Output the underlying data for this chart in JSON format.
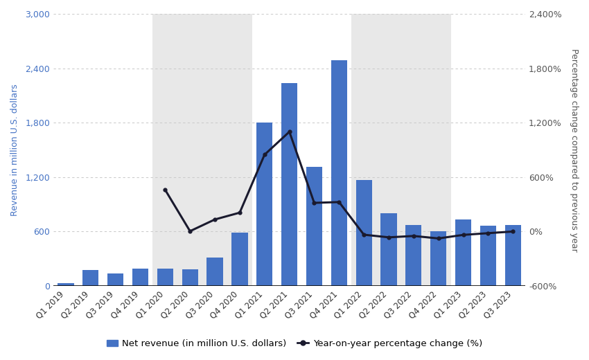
{
  "quarters": [
    "Q1 2019",
    "Q2 2019",
    "Q3 2019",
    "Q4 2019",
    "Q1 2020",
    "Q2 2020",
    "Q3 2020",
    "Q4 2020",
    "Q1 2021",
    "Q2 2021",
    "Q3 2021",
    "Q4 2021",
    "Q1 2022",
    "Q2 2022",
    "Q3 2022",
    "Q4 2022",
    "Q1 2023",
    "Q2 2023",
    "Q3 2023"
  ],
  "revenue": [
    34,
    178,
    135,
    190,
    190,
    186,
    315,
    585,
    1801,
    2233,
    1311,
    2490,
    1166,
    803,
    674,
    605,
    736,
    663,
    674
  ],
  "yoy_pct": [
    null,
    null,
    null,
    null,
    459,
    4,
    133,
    208,
    847,
    1100,
    316,
    325,
    -35,
    -64,
    -49,
    -76,
    -37,
    -18,
    0
  ],
  "bar_color": "#4472c4",
  "line_color": "#1a1a2e",
  "bg_color": "#ffffff",
  "stripe_colors": [
    "#ffffff",
    "#e8e8e8"
  ],
  "ylabel_left": "Revenue in million U.S. dollars",
  "ylabel_right": "Percentage change compared to previous year",
  "ylim_left": [
    0,
    3000
  ],
  "ylim_right": [
    -600,
    2400
  ],
  "yticks_left": [
    0,
    600,
    1200,
    1800,
    2400,
    3000
  ],
  "yticks_right": [
    -600,
    0,
    600,
    1200,
    1800,
    2400
  ],
  "ytick_labels_left": [
    "0",
    "600",
    "1,200",
    "1,800",
    "2,400",
    "3,000"
  ],
  "ytick_labels_right": [
    "-600%",
    "0%",
    "600%",
    "1,200%",
    "1,800%",
    "2,400%"
  ],
  "legend_bar_label": "Net revenue (in million U.S. dollars)",
  "legend_line_label": "Year-on-year percentage change (%)",
  "left_label_color": "#4472c4",
  "right_label_color": "#555555",
  "tick_label_color": "#4472c4",
  "right_tick_label_color": "#555555",
  "grid_color": "#cccccc"
}
